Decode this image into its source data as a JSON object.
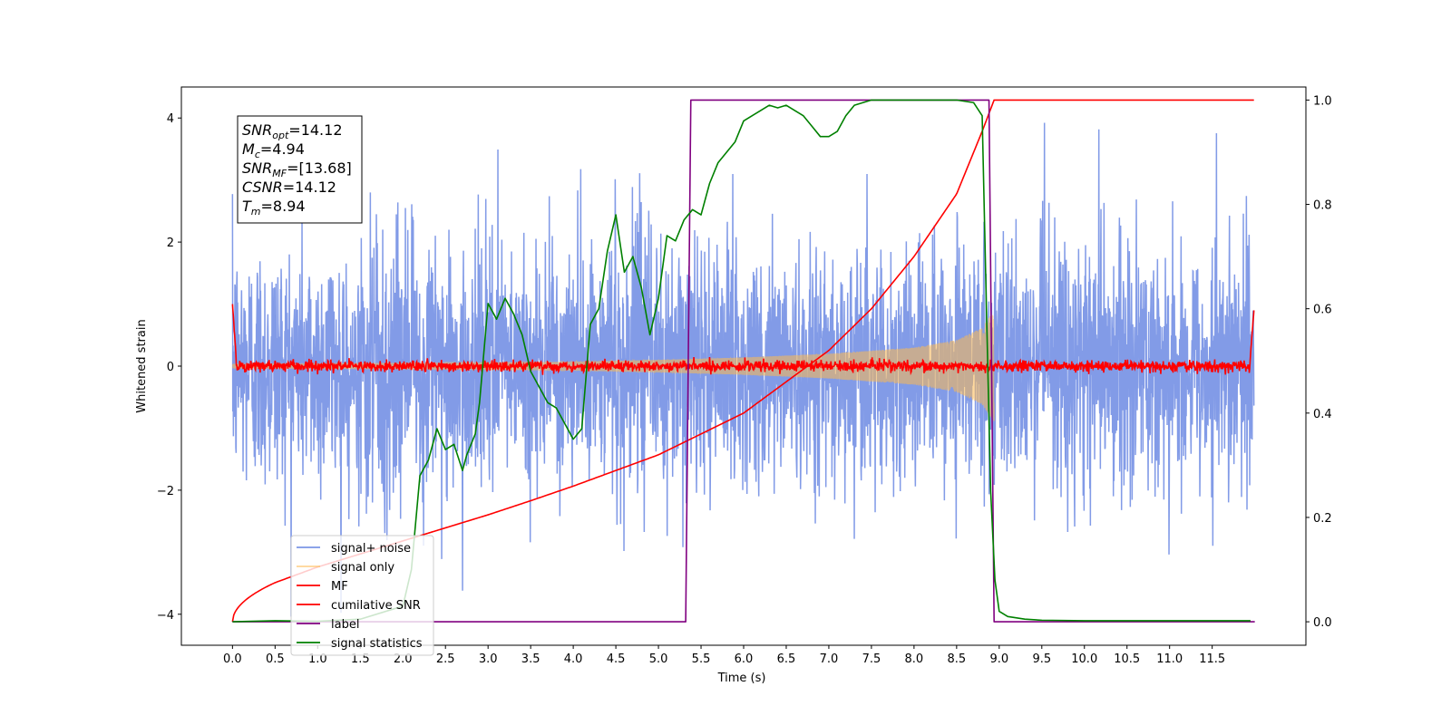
{
  "chart_data": {
    "type": "line",
    "xlabel": "Time (s)",
    "ylabel": "Whitened strain",
    "xlim": [
      -0.6,
      12.6
    ],
    "ylim": [
      -4.5,
      4.5
    ],
    "y2lim": [
      -0.045,
      1.025
    ],
    "x_ticks": [
      0.0,
      0.5,
      1.0,
      1.5,
      2.0,
      2.5,
      3.0,
      3.5,
      4.0,
      4.5,
      5.0,
      5.5,
      6.0,
      6.5,
      7.0,
      7.5,
      8.0,
      8.5,
      9.0,
      9.5,
      10.0,
      10.5,
      11.0,
      11.5
    ],
    "x_tick_labels": [
      "0.0",
      "0.5",
      "1.0",
      "1.5",
      "2.0",
      "2.5",
      "3.0",
      "3.5",
      "4.0",
      "4.5",
      "5.0",
      "5.5",
      "6.0",
      "6.5",
      "7.0",
      "7.5",
      "8.0",
      "8.5",
      "9.0",
      "9.5",
      "10.0",
      "10.5",
      "11.0",
      "11.5"
    ],
    "y_ticks": [
      -4,
      -2,
      0,
      2,
      4
    ],
    "y_tick_labels": [
      "−4",
      "−2",
      "0",
      "2",
      "4"
    ],
    "y2_ticks": [
      0.0,
      0.2,
      0.4,
      0.6,
      0.8,
      1.0
    ],
    "y2_tick_labels": [
      "0.0",
      "0.2",
      "0.4",
      "0.6",
      "0.8",
      "1.0"
    ],
    "legend_placement": "lower-left",
    "grid": false,
    "annotation": {
      "lines": [
        {
          "base": "SNR",
          "sub": "opt",
          "rest": "=14.12"
        },
        {
          "base": "M",
          "sub": "c",
          "rest": "=4.94"
        },
        {
          "base": "SNR",
          "sub": "MF",
          "rest": "=[13.68]"
        },
        {
          "base": "CSNR",
          "sub": "",
          "rest": "=14.12"
        },
        {
          "base": "T",
          "sub": "m",
          "rest": "=8.94"
        }
      ]
    },
    "series": [
      {
        "name": "signal+ noise",
        "color": "#7b96e6",
        "axis": "left",
        "kind": "noise",
        "x_range": [
          0.0,
          11.99
        ],
        "amplitude": 1.0
      },
      {
        "name": "signal only",
        "color": "#ffb94f",
        "axis": "left",
        "kind": "chirp",
        "x_range": [
          0.0,
          8.94
        ],
        "envelope_x": [
          0.0,
          2.0,
          4.0,
          5.0,
          6.0,
          7.0,
          8.0,
          8.5,
          8.8,
          8.94
        ],
        "envelope_y": [
          0.03,
          0.04,
          0.07,
          0.1,
          0.14,
          0.2,
          0.3,
          0.42,
          0.62,
          0.9
        ]
      },
      {
        "name": "MF",
        "color": "#ff0000",
        "axis": "left",
        "kind": "mf",
        "x_range": [
          0.0,
          11.99
        ],
        "edge_value": 1.0
      },
      {
        "name": "cumilative SNR",
        "color": "#ff0000",
        "axis": "right",
        "x": [
          0.0,
          0.5,
          1.0,
          1.5,
          2.0,
          2.5,
          3.0,
          3.5,
          4.0,
          4.5,
          5.0,
          5.5,
          6.0,
          6.5,
          7.0,
          7.5,
          8.0,
          8.5,
          8.8,
          8.94,
          9.0,
          12.0
        ],
        "y": [
          0.0,
          0.075,
          0.105,
          0.13,
          0.155,
          0.18,
          0.205,
          0.232,
          0.26,
          0.29,
          0.32,
          0.36,
          0.4,
          0.46,
          0.52,
          0.6,
          0.7,
          0.82,
          0.94,
          1.0,
          1.0,
          1.0
        ]
      },
      {
        "name": "label",
        "color": "#800080",
        "axis": "right",
        "x": [
          0.0,
          5.32,
          5.38,
          8.88,
          8.94,
          12.0
        ],
        "y": [
          0.0,
          0.0,
          1.0,
          1.0,
          0.0,
          0.0
        ]
      },
      {
        "name": "signal statistics",
        "color": "#008000",
        "axis": "right",
        "x": [
          0.0,
          0.5,
          1.0,
          1.5,
          2.0,
          2.1,
          2.2,
          2.3,
          2.4,
          2.5,
          2.6,
          2.7,
          2.75,
          2.85,
          2.9,
          3.0,
          3.1,
          3.2,
          3.3,
          3.4,
          3.5,
          3.6,
          3.7,
          3.8,
          3.9,
          4.0,
          4.1,
          4.2,
          4.3,
          4.4,
          4.5,
          4.6,
          4.7,
          4.8,
          4.9,
          5.0,
          5.1,
          5.2,
          5.3,
          5.4,
          5.5,
          5.6,
          5.7,
          5.8,
          5.9,
          6.0,
          6.1,
          6.2,
          6.3,
          6.4,
          6.5,
          6.6,
          6.7,
          6.8,
          6.9,
          7.0,
          7.1,
          7.2,
          7.3,
          7.4,
          7.5,
          8.0,
          8.5,
          8.7,
          8.8,
          8.85,
          8.9,
          8.95,
          9.0,
          9.1,
          9.3,
          9.5,
          10.0,
          11.0,
          11.95
        ],
        "y": [
          0.0,
          0.002,
          0.001,
          0.005,
          0.03,
          0.1,
          0.28,
          0.31,
          0.37,
          0.33,
          0.34,
          0.29,
          0.32,
          0.36,
          0.42,
          0.61,
          0.58,
          0.62,
          0.59,
          0.55,
          0.48,
          0.45,
          0.42,
          0.41,
          0.38,
          0.35,
          0.37,
          0.57,
          0.6,
          0.71,
          0.78,
          0.67,
          0.7,
          0.64,
          0.55,
          0.62,
          0.74,
          0.73,
          0.77,
          0.79,
          0.78,
          0.84,
          0.88,
          0.9,
          0.92,
          0.96,
          0.97,
          0.98,
          0.99,
          0.985,
          0.99,
          0.98,
          0.97,
          0.95,
          0.93,
          0.93,
          0.94,
          0.97,
          0.99,
          0.995,
          1.0,
          1.0,
          1.0,
          0.995,
          0.97,
          0.6,
          0.25,
          0.08,
          0.02,
          0.01,
          0.005,
          0.003,
          0.002,
          0.002,
          0.002
        ]
      }
    ]
  }
}
